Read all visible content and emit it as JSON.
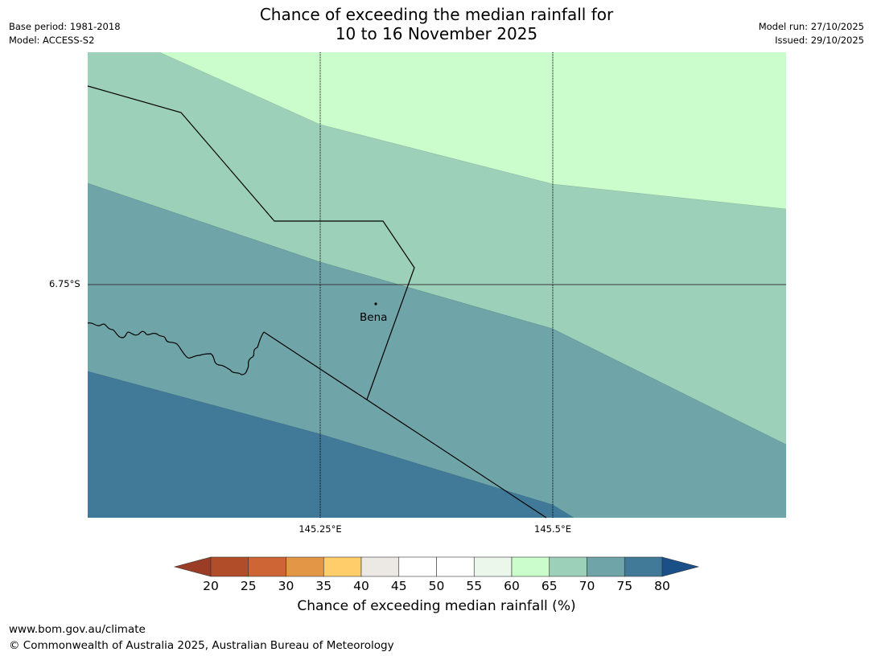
{
  "title": {
    "line1": "Chance of exceeding the median rainfall for",
    "line2": "10 to 16 November 2025"
  },
  "meta_left": {
    "base_period": "Base period: 1981-2018",
    "model": "Model: ACCESS-S2"
  },
  "meta_right": {
    "model_run": "Model run: 27/10/2025",
    "issued": "Issued: 29/10/2025"
  },
  "map": {
    "lat_label": "6.75°S",
    "lon_labels": [
      "145.25°E",
      "145.5°E"
    ],
    "place": "Bena",
    "zones": [
      {
        "range": "60-65",
        "color": "#cbfccb"
      },
      {
        "range": "65-70",
        "color": "#9dd0b9"
      },
      {
        "range": "70-75",
        "color": "#6fa4a8"
      },
      {
        "range": "75-80",
        "color": "#417a98"
      }
    ]
  },
  "colorbar": {
    "ticks": [
      "20",
      "25",
      "30",
      "35",
      "40",
      "45",
      "50",
      "55",
      "60",
      "65",
      "70",
      "75",
      "80"
    ],
    "colors": [
      "#9b3d26",
      "#b24d29",
      "#cd6634",
      "#e39646",
      "#ffcd6a",
      "#ece9e4",
      "#ffffff",
      "#ffffff",
      "#eaf7ea",
      "#cbfccb",
      "#9dd0b9",
      "#6fa4a8",
      "#417a98",
      "#1a4f88"
    ],
    "title": "Chance of exceeding median rainfall (%)"
  },
  "footer": {
    "url": "www.bom.gov.au/climate",
    "copyright": "© Commonwealth of Australia 2025, Australian Bureau of Meteorology"
  }
}
